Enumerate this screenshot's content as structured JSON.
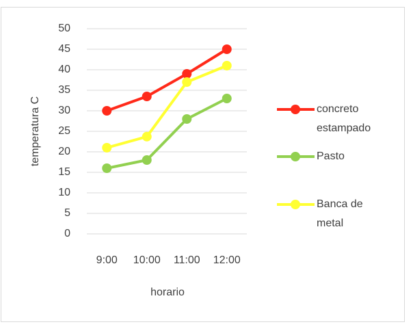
{
  "chart_data": {
    "type": "line",
    "categories": [
      "9:00",
      "10:00",
      "11:00",
      "12:00"
    ],
    "series": [
      {
        "name": "concreto estampado",
        "color": "#ff2a1a",
        "values": [
          30,
          33.5,
          39,
          45
        ]
      },
      {
        "name": "Pasto",
        "color": "#92d050",
        "values": [
          16,
          18,
          28,
          33
        ]
      },
      {
        "name": "Banca de metal",
        "color": "#ffff33",
        "values": [
          21,
          23.7,
          37,
          41
        ]
      }
    ],
    "ylim": [
      0,
      50
    ],
    "yticks": [
      0,
      5,
      10,
      15,
      20,
      25,
      30,
      35,
      40,
      45,
      50
    ],
    "xlabel": "horario",
    "ylabel": "temperatura C",
    "grid": true,
    "legend": "right"
  }
}
